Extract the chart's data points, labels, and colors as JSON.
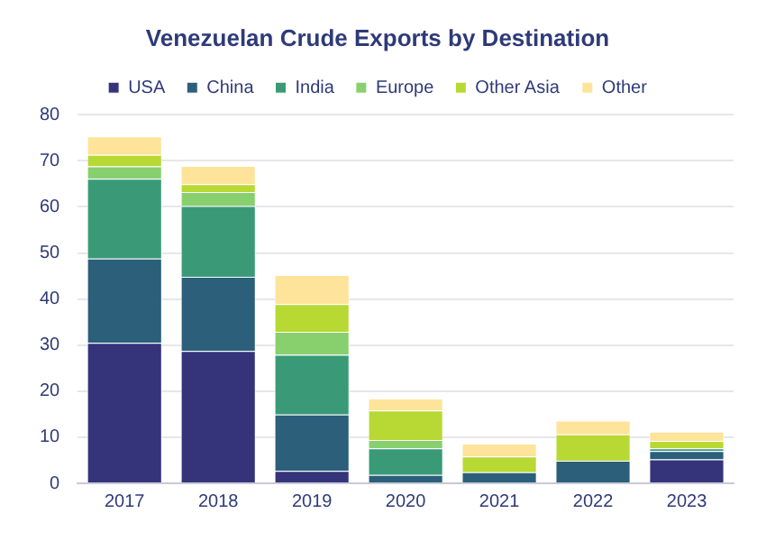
{
  "chart_data": {
    "type": "bar",
    "title": "Venezuelan Crude Exports by Destination",
    "stacked": true,
    "legend": "top",
    "grid": "y",
    "categories": [
      "2017",
      "2018",
      "2019",
      "2020",
      "2021",
      "2022",
      "2023"
    ],
    "ylim": [
      0,
      80
    ],
    "yticks": [
      0,
      10,
      20,
      30,
      40,
      50,
      60,
      70,
      80
    ],
    "series": [
      {
        "name": "USA",
        "color": "#35347a",
        "values": [
          30.5,
          28.7,
          2.7,
          0,
          0,
          0,
          5.2
        ]
      },
      {
        "name": "China",
        "color": "#2b5f7a",
        "values": [
          18.3,
          16.1,
          12.2,
          1.8,
          2.4,
          4.9,
          1.8
        ]
      },
      {
        "name": "India",
        "color": "#3a9a78",
        "values": [
          17.3,
          15.4,
          13,
          5.8,
          0,
          0,
          0.6
        ]
      },
      {
        "name": "Europe",
        "color": "#88cf6e",
        "values": [
          2.7,
          3,
          5,
          1.8,
          0,
          0,
          0
        ]
      },
      {
        "name": "Other Asia",
        "color": "#b8d834",
        "values": [
          2.5,
          1.7,
          6,
          6.4,
          3.4,
          5.7,
          1.6
        ]
      },
      {
        "name": "Other",
        "color": "#fde49a",
        "values": [
          4,
          4,
          6.3,
          2.6,
          2.8,
          3,
          2
        ]
      }
    ]
  }
}
